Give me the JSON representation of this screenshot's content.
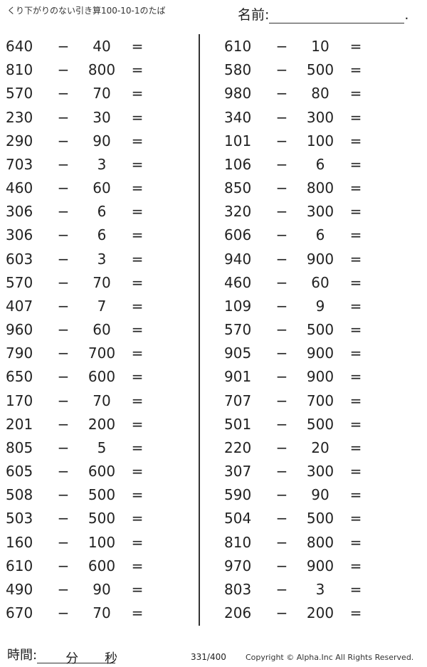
{
  "header": {
    "title": "くり下がりのない引き算100-10-1のたば",
    "name_label": "名前:",
    "name_end": "."
  },
  "symbols": {
    "minus": "−",
    "equals": "="
  },
  "left": [
    [
      "640",
      "40"
    ],
    [
      "810",
      "800"
    ],
    [
      "570",
      "70"
    ],
    [
      "230",
      "30"
    ],
    [
      "290",
      "90"
    ],
    [
      "703",
      "3"
    ],
    [
      "460",
      "60"
    ],
    [
      "306",
      "6"
    ],
    [
      "306",
      "6"
    ],
    [
      "603",
      "3"
    ],
    [
      "570",
      "70"
    ],
    [
      "407",
      "7"
    ],
    [
      "960",
      "60"
    ],
    [
      "790",
      "700"
    ],
    [
      "650",
      "600"
    ],
    [
      "170",
      "70"
    ],
    [
      "201",
      "200"
    ],
    [
      "805",
      "5"
    ],
    [
      "605",
      "600"
    ],
    [
      "508",
      "500"
    ],
    [
      "503",
      "500"
    ],
    [
      "160",
      "100"
    ],
    [
      "610",
      "600"
    ],
    [
      "490",
      "90"
    ],
    [
      "670",
      "70"
    ]
  ],
  "right": [
    [
      "610",
      "10"
    ],
    [
      "580",
      "500"
    ],
    [
      "980",
      "80"
    ],
    [
      "340",
      "300"
    ],
    [
      "101",
      "100"
    ],
    [
      "106",
      "6"
    ],
    [
      "850",
      "800"
    ],
    [
      "320",
      "300"
    ],
    [
      "606",
      "6"
    ],
    [
      "940",
      "900"
    ],
    [
      "460",
      "60"
    ],
    [
      "109",
      "9"
    ],
    [
      "570",
      "500"
    ],
    [
      "905",
      "900"
    ],
    [
      "901",
      "900"
    ],
    [
      "707",
      "700"
    ],
    [
      "501",
      "500"
    ],
    [
      "220",
      "20"
    ],
    [
      "307",
      "300"
    ],
    [
      "590",
      "90"
    ],
    [
      "504",
      "500"
    ],
    [
      "810",
      "800"
    ],
    [
      "970",
      "900"
    ],
    [
      "803",
      "3"
    ],
    [
      "206",
      "200"
    ]
  ],
  "footer": {
    "time_label": "時間:",
    "minutes": "分",
    "seconds": "秒",
    "page": "331/400",
    "copyright": "Copyright ©  Alpha.Inc All Rights Reserved."
  }
}
